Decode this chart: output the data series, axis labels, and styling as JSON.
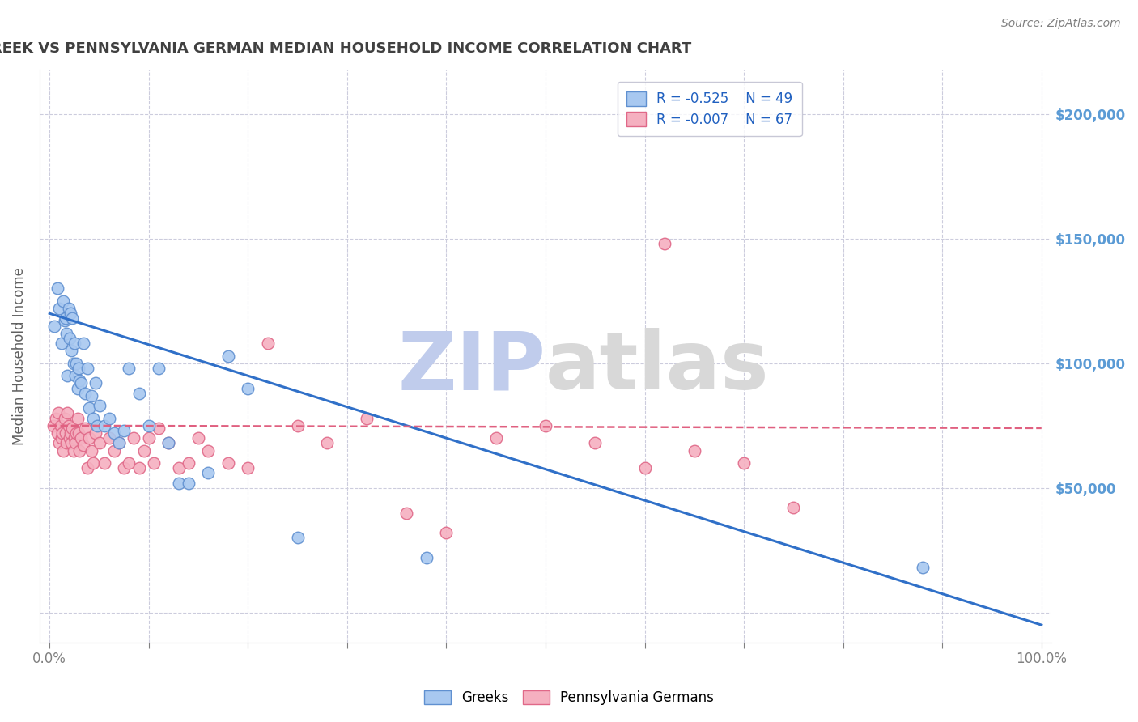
{
  "title": "GREEK VS PENNSYLVANIA GERMAN MEDIAN HOUSEHOLD INCOME CORRELATION CHART",
  "source": "Source: ZipAtlas.com",
  "ylabel": "Median Household Income",
  "yticks": [
    0,
    50000,
    100000,
    150000,
    200000
  ],
  "ytick_labels": [
    "",
    "$50,000",
    "$100,000",
    "$150,000",
    "$200,000"
  ],
  "ymax": 218000,
  "ymin": -12000,
  "xmin": -0.01,
  "xmax": 1.01,
  "legend_r1": "R = -0.525",
  "legend_n1": "N = 49",
  "legend_r2": "R = -0.007",
  "legend_n2": "N = 67",
  "greek_color": "#A8C8F0",
  "penn_color": "#F5B0C0",
  "greek_edge": "#6090D0",
  "penn_edge": "#E06888",
  "greek_line_color": "#3070C8",
  "penn_line_color": "#E06080",
  "title_color": "#404040",
  "ytick_color": "#5B9BD5",
  "grid_color": "#CCCCDD",
  "watermark_color_zip": "#C0CCEC",
  "watermark_color_atlas": "#D8D8D8",
  "background_color": "#FFFFFF",
  "greeks_x": [
    0.005,
    0.008,
    0.01,
    0.012,
    0.014,
    0.015,
    0.016,
    0.017,
    0.018,
    0.019,
    0.02,
    0.021,
    0.022,
    0.023,
    0.024,
    0.025,
    0.026,
    0.027,
    0.028,
    0.029,
    0.03,
    0.032,
    0.034,
    0.036,
    0.038,
    0.04,
    0.042,
    0.044,
    0.046,
    0.048,
    0.05,
    0.055,
    0.06,
    0.065,
    0.07,
    0.075,
    0.08,
    0.09,
    0.1,
    0.11,
    0.12,
    0.13,
    0.14,
    0.16,
    0.18,
    0.2,
    0.25,
    0.38,
    0.88
  ],
  "greeks_y": [
    115000,
    130000,
    122000,
    108000,
    125000,
    117000,
    118000,
    112000,
    95000,
    122000,
    110000,
    120000,
    105000,
    118000,
    100000,
    108000,
    95000,
    100000,
    90000,
    98000,
    93000,
    92000,
    108000,
    88000,
    98000,
    82000,
    87000,
    78000,
    92000,
    75000,
    83000,
    75000,
    78000,
    72000,
    68000,
    73000,
    98000,
    88000,
    75000,
    98000,
    68000,
    52000,
    52000,
    56000,
    103000,
    90000,
    30000,
    22000,
    18000
  ],
  "penn_x": [
    0.004,
    0.006,
    0.008,
    0.009,
    0.01,
    0.011,
    0.012,
    0.013,
    0.014,
    0.015,
    0.016,
    0.017,
    0.018,
    0.019,
    0.02,
    0.021,
    0.022,
    0.023,
    0.024,
    0.025,
    0.026,
    0.027,
    0.028,
    0.029,
    0.03,
    0.032,
    0.034,
    0.036,
    0.038,
    0.04,
    0.042,
    0.044,
    0.046,
    0.05,
    0.055,
    0.06,
    0.065,
    0.07,
    0.075,
    0.08,
    0.085,
    0.09,
    0.095,
    0.1,
    0.105,
    0.11,
    0.12,
    0.13,
    0.14,
    0.15,
    0.16,
    0.18,
    0.2,
    0.22,
    0.25,
    0.28,
    0.32,
    0.36,
    0.4,
    0.45,
    0.5,
    0.55,
    0.6,
    0.65,
    0.7,
    0.75,
    0.62
  ],
  "penn_y": [
    75000,
    78000,
    72000,
    80000,
    68000,
    75000,
    70000,
    72000,
    65000,
    78000,
    72000,
    68000,
    80000,
    75000,
    70000,
    72000,
    68000,
    74000,
    65000,
    70000,
    68000,
    72000,
    78000,
    72000,
    65000,
    70000,
    67000,
    74000,
    58000,
    70000,
    65000,
    60000,
    72000,
    68000,
    60000,
    70000,
    65000,
    68000,
    58000,
    60000,
    70000,
    58000,
    65000,
    70000,
    60000,
    74000,
    68000,
    58000,
    60000,
    70000,
    65000,
    60000,
    58000,
    108000,
    75000,
    68000,
    78000,
    40000,
    32000,
    70000,
    75000,
    68000,
    58000,
    65000,
    60000,
    42000,
    148000
  ],
  "greek_regression_x0": 0.0,
  "greek_regression_y0": 120000,
  "greek_regression_x1": 1.0,
  "greek_regression_y1": -5000,
  "penn_regression_x0": 0.0,
  "penn_regression_y0": 75000,
  "penn_regression_x1": 1.0,
  "penn_regression_y1": 74000
}
